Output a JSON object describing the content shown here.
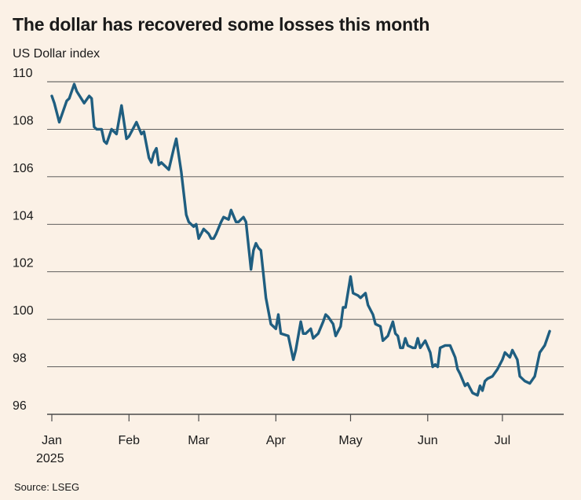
{
  "title": "The dollar has recovered some losses this month",
  "subtitle": "US Dollar index",
  "source": "Source: LSEG",
  "colors": {
    "background": "#fbf1e6",
    "line": "#1f5e80",
    "grid": "#4a4a4a",
    "text": "#1a1a1a"
  },
  "chart_data": {
    "type": "line",
    "title": "The dollar has recovered some losses this month",
    "ylabel": "US Dollar index",
    "ylim": [
      96,
      110
    ],
    "yticks": [
      96,
      98,
      100,
      102,
      104,
      106,
      108,
      110
    ],
    "xlim": [
      0,
      205
    ],
    "xticks": [
      {
        "value": 0,
        "label": "Jan",
        "sublabel": "2025"
      },
      {
        "value": 31,
        "label": "Feb"
      },
      {
        "value": 59,
        "label": "Mar"
      },
      {
        "value": 90,
        "label": "Apr"
      },
      {
        "value": 120,
        "label": "May"
      },
      {
        "value": 151,
        "label": "Jun"
      },
      {
        "value": 181,
        "label": "Jul"
      }
    ],
    "grid": true,
    "legend": "none",
    "series": [
      {
        "values": [
          [
            0,
            109.4
          ],
          [
            1,
            109.1
          ],
          [
            3,
            108.3
          ],
          [
            6,
            109.2
          ],
          [
            7,
            109.3
          ],
          [
            9,
            109.9
          ],
          [
            10,
            109.6
          ],
          [
            13,
            109.1
          ],
          [
            15,
            109.4
          ],
          [
            16,
            109.3
          ],
          [
            17,
            108.1
          ],
          [
            18,
            108.0
          ],
          [
            20,
            108.0
          ],
          [
            21,
            107.5
          ],
          [
            22,
            107.4
          ],
          [
            24,
            108.0
          ],
          [
            26,
            107.8
          ],
          [
            28,
            109.0
          ],
          [
            30,
            107.6
          ],
          [
            31,
            107.7
          ],
          [
            34,
            108.3
          ],
          [
            36,
            107.8
          ],
          [
            37,
            107.9
          ],
          [
            39,
            106.8
          ],
          [
            40,
            106.6
          ],
          [
            41,
            107.0
          ],
          [
            42,
            107.2
          ],
          [
            43,
            106.5
          ],
          [
            44,
            106.6
          ],
          [
            46,
            106.4
          ],
          [
            47,
            106.3
          ],
          [
            49,
            107.2
          ],
          [
            50,
            107.6
          ],
          [
            52,
            106.2
          ],
          [
            54,
            104.4
          ],
          [
            55,
            104.1
          ],
          [
            57,
            103.9
          ],
          [
            58,
            104.0
          ],
          [
            59,
            103.4
          ],
          [
            61,
            103.8
          ],
          [
            63,
            103.6
          ],
          [
            64,
            103.4
          ],
          [
            65,
            103.4
          ],
          [
            66,
            103.6
          ],
          [
            68,
            104.1
          ],
          [
            69,
            104.3
          ],
          [
            71,
            104.2
          ],
          [
            72,
            104.6
          ],
          [
            74,
            104.1
          ],
          [
            75,
            104.1
          ],
          [
            77,
            104.3
          ],
          [
            78,
            104.1
          ],
          [
            80,
            102.1
          ],
          [
            81,
            102.9
          ],
          [
            82,
            103.2
          ],
          [
            83,
            103.0
          ],
          [
            84,
            102.9
          ],
          [
            86,
            100.9
          ],
          [
            88,
            99.8
          ],
          [
            90,
            99.6
          ],
          [
            91,
            100.2
          ],
          [
            92,
            99.4
          ],
          [
            95,
            99.3
          ],
          [
            97,
            98.3
          ],
          [
            98,
            98.7
          ],
          [
            100,
            99.9
          ],
          [
            101,
            99.4
          ],
          [
            102,
            99.4
          ],
          [
            104,
            99.6
          ],
          [
            105,
            99.2
          ],
          [
            107,
            99.4
          ],
          [
            109,
            99.9
          ],
          [
            110,
            100.2
          ],
          [
            111,
            100.1
          ],
          [
            113,
            99.8
          ],
          [
            114,
            99.3
          ],
          [
            116,
            99.7
          ],
          [
            117,
            100.5
          ],
          [
            118,
            100.5
          ],
          [
            120,
            101.8
          ],
          [
            121,
            101.1
          ],
          [
            123,
            101.0
          ],
          [
            124,
            100.9
          ],
          [
            126,
            101.1
          ],
          [
            127,
            100.6
          ],
          [
            129,
            100.2
          ],
          [
            130,
            99.8
          ],
          [
            132,
            99.7
          ],
          [
            133,
            99.1
          ],
          [
            135,
            99.3
          ],
          [
            136,
            99.6
          ],
          [
            137,
            99.9
          ],
          [
            138,
            99.4
          ],
          [
            139,
            99.3
          ],
          [
            140,
            98.8
          ],
          [
            141,
            98.8
          ],
          [
            142,
            99.2
          ],
          [
            143,
            98.9
          ],
          [
            145,
            98.8
          ],
          [
            146,
            98.8
          ],
          [
            147,
            99.2
          ],
          [
            148,
            98.8
          ],
          [
            150,
            99.1
          ],
          [
            152,
            98.6
          ],
          [
            153,
            98.0
          ],
          [
            154,
            98.1
          ],
          [
            155,
            98.0
          ],
          [
            156,
            98.8
          ],
          [
            158,
            98.9
          ],
          [
            160,
            98.9
          ],
          [
            162,
            98.4
          ],
          [
            163,
            97.9
          ],
          [
            164,
            97.7
          ],
          [
            166,
            97.2
          ],
          [
            167,
            97.3
          ],
          [
            169,
            96.9
          ],
          [
            171,
            96.8
          ],
          [
            172,
            97.2
          ],
          [
            173,
            97.0
          ],
          [
            174,
            97.4
          ],
          [
            175,
            97.5
          ],
          [
            177,
            97.6
          ],
          [
            179,
            97.9
          ],
          [
            181,
            98.3
          ],
          [
            182,
            98.6
          ],
          [
            184,
            98.4
          ],
          [
            185,
            98.7
          ],
          [
            187,
            98.3
          ],
          [
            188,
            97.6
          ],
          [
            190,
            97.4
          ],
          [
            192,
            97.3
          ],
          [
            194,
            97.6
          ],
          [
            196,
            98.6
          ],
          [
            198,
            98.9
          ],
          [
            199,
            99.2
          ],
          [
            200,
            99.5
          ]
        ]
      }
    ]
  }
}
